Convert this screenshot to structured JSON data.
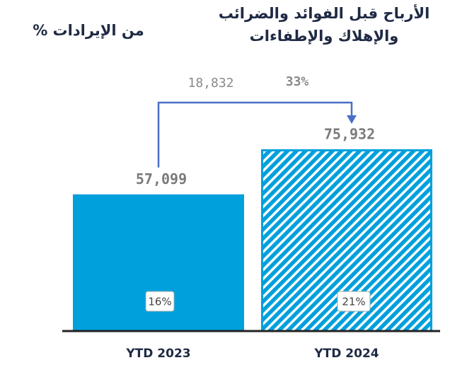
{
  "chart_data": {
    "type": "bar",
    "title": [
      "الأرباح قبل الفوائد والضرائب",
      "والإهلاك والإطفاءات"
    ],
    "subtitle": "من الإيرادات %",
    "categories": [
      "YTD 2023",
      "YTD 2024"
    ],
    "values": [
      57099,
      75932
    ],
    "value_labels": [
      "57,099",
      "75,932"
    ],
    "color": "#00a0dc",
    "revenue_share": {
      "values": [
        16,
        21
      ],
      "value_labels": [
        "16%",
        "21%"
      ]
    },
    "change": {
      "value": 18832,
      "label": "18,832",
      "percent": 33,
      "percent_label": "33%",
      "color": "#4a6fc9"
    }
  }
}
